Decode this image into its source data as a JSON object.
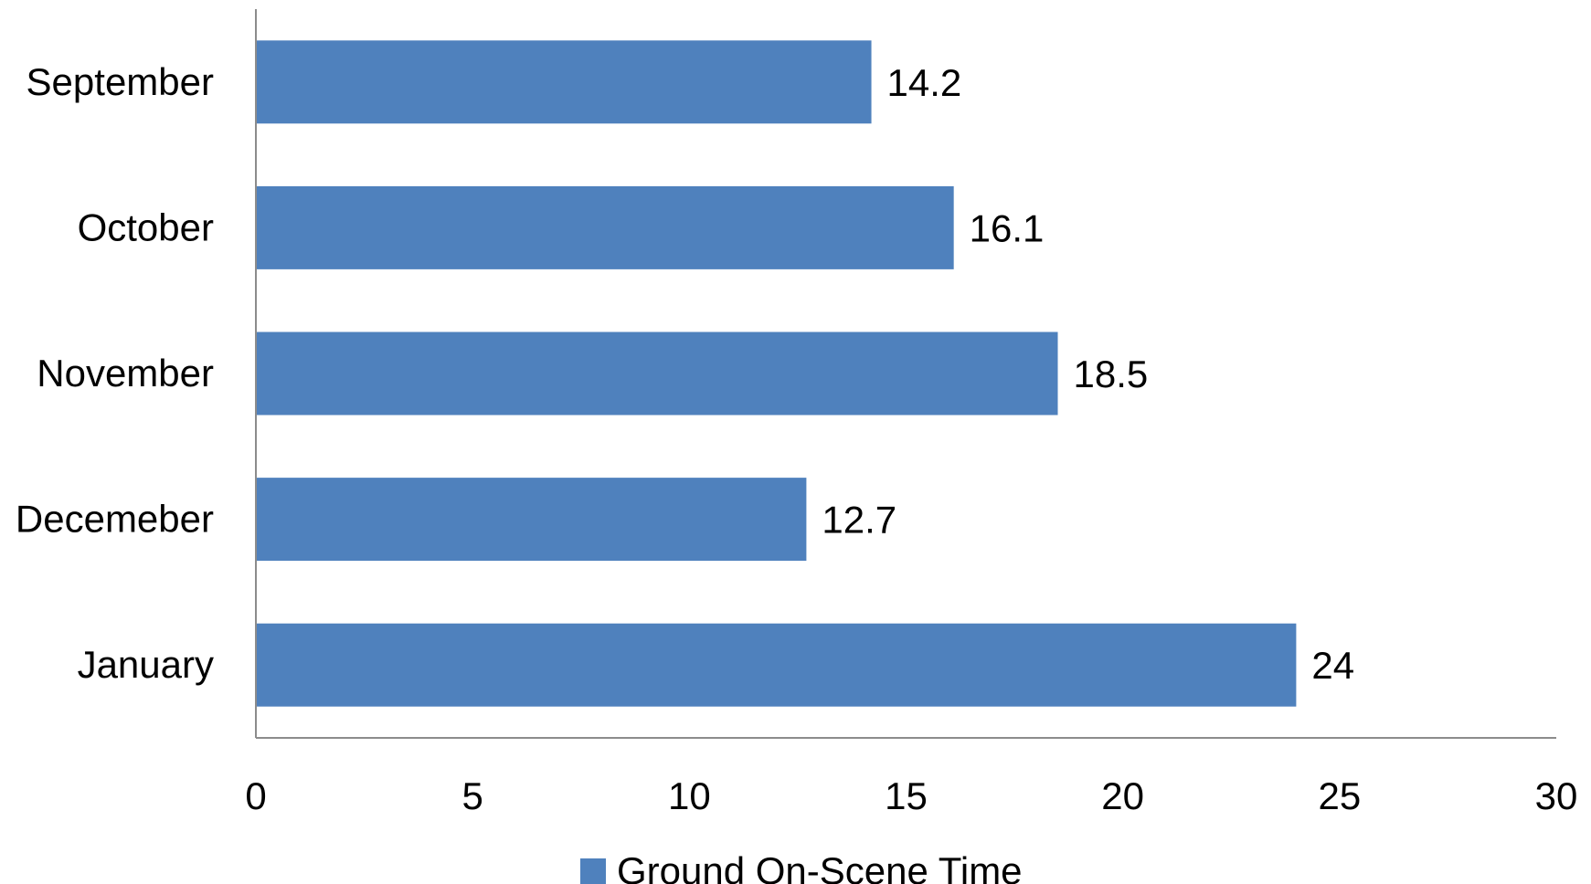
{
  "chart_data": {
    "type": "bar",
    "orientation": "horizontal",
    "categories": [
      "September",
      "October",
      "November",
      "Decemeber",
      "January"
    ],
    "series": [
      {
        "name": "Ground On-Scene Time",
        "values": [
          14.2,
          16.1,
          18.5,
          12.7,
          24
        ],
        "color": "#4F81BD"
      }
    ],
    "data_labels": [
      "14.2",
      "16.1",
      "18.5",
      "12.7",
      "24"
    ],
    "x_ticks": [
      "0",
      "5",
      "10",
      "15",
      "20",
      "25",
      "30"
    ],
    "xlim": [
      0,
      30
    ],
    "title": "",
    "xlabel": "",
    "ylabel": "",
    "grid": false,
    "legend_position": "bottom"
  }
}
